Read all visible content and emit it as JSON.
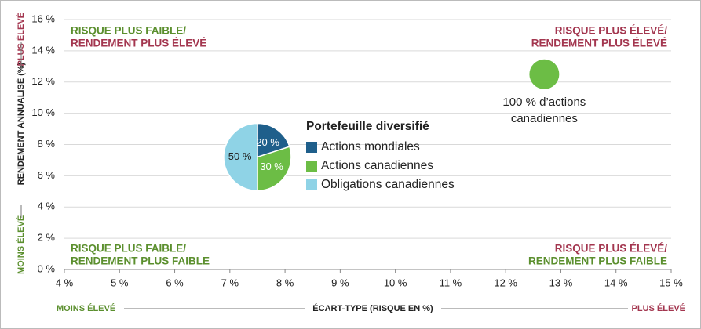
{
  "chart_data": {
    "type": "scatter",
    "x_axis_label": {
      "low": "MOINS ÉLEVÉ",
      "title": "ÉCART-TYPE (RISQUE EN %)",
      "high": "PLUS ÉLEVÉ"
    },
    "y_axis_label": {
      "low": "MOINS ÉLEVÉ",
      "title": "RENDEMENT ANNUALISÉ (%)",
      "high": "PLUS ÉLEVÉ"
    },
    "low_color": "#5b8f2e",
    "high_color": "#a3364f",
    "xlim": [
      4,
      15
    ],
    "xticks": [
      {
        "value": 4,
        "label": "4 %"
      },
      {
        "value": 5,
        "label": "5 %"
      },
      {
        "value": 6,
        "label": "6 %"
      },
      {
        "value": 7,
        "label": "7 %"
      },
      {
        "value": 8,
        "label": "8 %"
      },
      {
        "value": 9,
        "label": "9 %"
      },
      {
        "value": 10,
        "label": "10 %"
      },
      {
        "value": 11,
        "label": "11 %"
      },
      {
        "value": 12,
        "label": "12 %"
      },
      {
        "value": 13,
        "label": "13 %"
      },
      {
        "value": 14,
        "label": "14 %"
      },
      {
        "value": 15,
        "label": "15 %"
      }
    ],
    "ylim": [
      0,
      16
    ],
    "yticks": [
      {
        "value": 0,
        "label": "0 %"
      },
      {
        "value": 2,
        "label": "2 %"
      },
      {
        "value": 4,
        "label": "4 %"
      },
      {
        "value": 6,
        "label": "6 %"
      },
      {
        "value": 8,
        "label": "8 %"
      },
      {
        "value": 10,
        "label": "10 %"
      },
      {
        "value": 12,
        "label": "12 %"
      },
      {
        "value": 14,
        "label": "14 %"
      },
      {
        "value": 16,
        "label": "16 %"
      }
    ],
    "grid": true,
    "annotations": [
      {
        "corner": "top-left",
        "lines": [
          {
            "text": "RISQUE PLUS FAIBLE/",
            "color": "#5b8f2e"
          },
          {
            "text": "RENDEMENT PLUS ÉLEVÉ",
            "color": "#a3364f"
          }
        ]
      },
      {
        "corner": "top-right",
        "lines": [
          {
            "text": "RISQUE PLUS ÉLEVÉ/",
            "color": "#a3364f"
          },
          {
            "text": "RENDEMENT PLUS ÉLEVÉ",
            "color": "#a3364f"
          }
        ]
      },
      {
        "corner": "bottom-left",
        "lines": [
          {
            "text": "RISQUE PLUS FAIBLE/",
            "color": "#5b8f2e"
          },
          {
            "text": "RENDEMENT PLUS FAIBLE",
            "color": "#5b8f2e"
          }
        ]
      },
      {
        "corner": "bottom-right",
        "lines": [
          {
            "text": "RISQUE PLUS ÉLEVÉ/",
            "color": "#a3364f"
          },
          {
            "text": "RENDEMENT PLUS FAIBLE",
            "color": "#5b8f2e"
          }
        ]
      }
    ],
    "series": [
      {
        "label_lines": [
          "100 % d’actions",
          "canadiennes"
        ],
        "color": "#6cbd45",
        "x": [
          12.7
        ],
        "values": [
          12.5
        ]
      }
    ],
    "pie": {
      "title": "Portefeuille diversifié",
      "x": 7.5,
      "y": 7.2,
      "categories": [
        "Actions mondiales",
        "Actions canadiennes",
        "Obligations canadiennes"
      ],
      "values": [
        20,
        30,
        50
      ],
      "value_labels": [
        "20 %",
        "30 %",
        "50 %"
      ],
      "colors": [
        "#1f5f8b",
        "#6cbd45",
        "#8fd3e6"
      ]
    }
  }
}
